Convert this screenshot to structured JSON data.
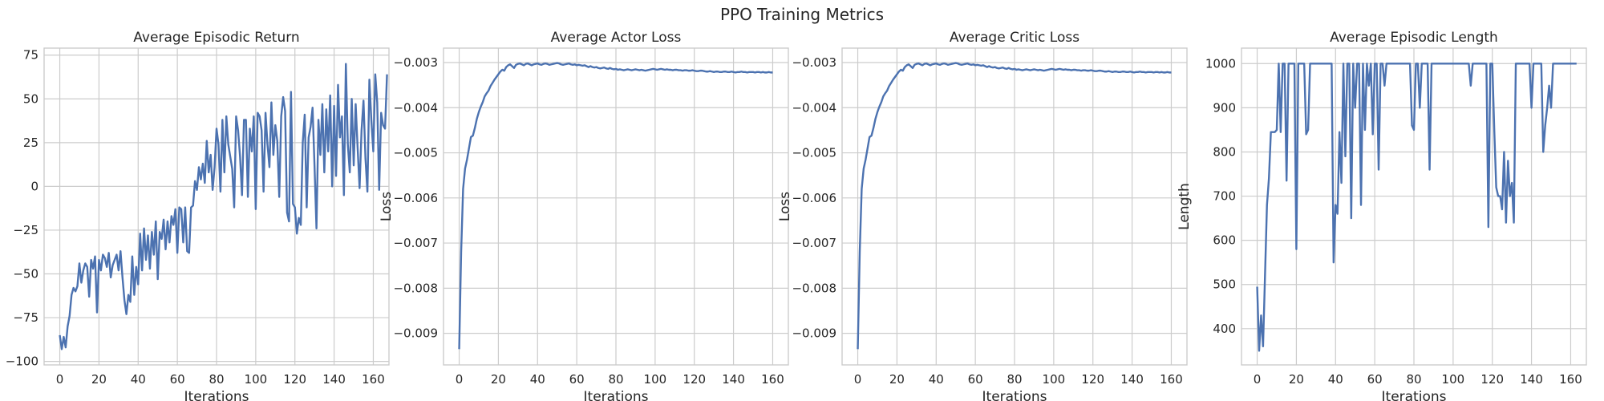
{
  "figure": {
    "title": "PPO Training Metrics"
  },
  "style": {
    "line_color": "#4c72b0",
    "grid_color": "#cccccc"
  },
  "chart_data": [
    {
      "type": "line",
      "title": "Average Episodic Return",
      "xlabel": "Iterations",
      "ylabel": "",
      "xlim": [
        -8,
        168
      ],
      "ylim": [
        -102,
        79
      ],
      "xticks": [
        0,
        20,
        40,
        60,
        80,
        100,
        120,
        140,
        160
      ],
      "yticks": [
        -100,
        -75,
        -50,
        -25,
        0,
        25,
        50,
        75
      ],
      "ytick_labels": [
        "−100",
        "−75",
        "−50",
        "−25",
        "0",
        "25",
        "50",
        "75"
      ],
      "grid": true,
      "series": [
        {
          "values": [
            -85,
            -93,
            -86,
            -92,
            -80,
            -74,
            -62,
            -58,
            -60,
            -57,
            -44,
            -55,
            -48,
            -44,
            -46,
            -63,
            -42,
            -47,
            -40,
            -72,
            -42,
            -48,
            -39,
            -41,
            -46,
            -38,
            -52,
            -45,
            -42,
            -39,
            -48,
            -37,
            -52,
            -65,
            -73,
            -62,
            -66,
            -40,
            -62,
            -46,
            -56,
            -27,
            -48,
            -24,
            -42,
            -28,
            -47,
            -26,
            -39,
            -20,
            -53,
            -26,
            -30,
            -19,
            -36,
            -20,
            -32,
            -17,
            -22,
            -13,
            -38,
            -12,
            -13,
            -32,
            -12,
            -37,
            -38,
            -12,
            -11,
            3,
            -2,
            11,
            4,
            13,
            2,
            26,
            8,
            18,
            -2,
            11,
            33,
            24,
            -3,
            38,
            8,
            40,
            24,
            17,
            10,
            -12,
            40,
            32,
            17,
            -5,
            38,
            38,
            -6,
            33,
            20,
            40,
            -13,
            42,
            40,
            32,
            -3,
            42,
            24,
            11,
            48,
            18,
            35,
            26,
            -6,
            40,
            51,
            43,
            -15,
            -20,
            54,
            -10,
            -12,
            -27,
            -18,
            -22,
            25,
            41,
            -12,
            28,
            34,
            45,
            12,
            -24,
            38,
            18,
            47,
            8,
            44,
            20,
            52,
            0,
            46,
            6,
            58,
            28,
            40,
            -5,
            70,
            24,
            8,
            50,
            12,
            47,
            22,
            -1,
            32,
            49,
            16,
            -3,
            61,
            38,
            20,
            64,
            48,
            -2,
            42,
            35,
            33,
            64
          ]
        }
      ]
    },
    {
      "type": "line",
      "title": "Average Actor Loss",
      "xlabel": "Iterations",
      "ylabel": "Loss",
      "xlim": [
        -8,
        168
      ],
      "ylim": [
        -0.0097,
        -0.00268
      ],
      "xticks": [
        0,
        20,
        40,
        60,
        80,
        100,
        120,
        140,
        160
      ],
      "yticks": [
        -0.009,
        -0.008,
        -0.007,
        -0.006,
        -0.005,
        -0.004,
        -0.003
      ],
      "ytick_labels": [
        "−0.009",
        "−0.008",
        "−0.007",
        "−0.006",
        "−0.005",
        "−0.004",
        "−0.003"
      ],
      "grid": true,
      "series": [
        {
          "values": [
            -0.00935,
            -0.0072,
            -0.0058,
            -0.00535,
            -0.00515,
            -0.0049,
            -0.00465,
            -0.00462,
            -0.00445,
            -0.00425,
            -0.0041,
            -0.00398,
            -0.00388,
            -0.00375,
            -0.00368,
            -0.00362,
            -0.00352,
            -0.00345,
            -0.00338,
            -0.00332,
            -0.00326,
            -0.0032,
            -0.00316,
            -0.00318,
            -0.0031,
            -0.00306,
            -0.00304,
            -0.00308,
            -0.00312,
            -0.00305,
            -0.00303,
            -0.00302,
            -0.00304,
            -0.00306,
            -0.00303,
            -0.00302,
            -0.00304,
            -0.00306,
            -0.00304,
            -0.00303,
            -0.00302,
            -0.00304,
            -0.00305,
            -0.00303,
            -0.00302,
            -0.00303,
            -0.00305,
            -0.00304,
            -0.00303,
            -0.00302,
            -0.00301,
            -0.00302,
            -0.00304,
            -0.00305,
            -0.00304,
            -0.00303,
            -0.00302,
            -0.00304,
            -0.00305,
            -0.00304,
            -0.00306,
            -0.00305,
            -0.00306,
            -0.00307,
            -0.00306,
            -0.00308,
            -0.0031,
            -0.00308,
            -0.0031,
            -0.00311,
            -0.0031,
            -0.00312,
            -0.00313,
            -0.00312,
            -0.00311,
            -0.00313,
            -0.00314,
            -0.00312,
            -0.00314,
            -0.00315,
            -0.00314,
            -0.00316,
            -0.00315,
            -0.00316,
            -0.00317,
            -0.00316,
            -0.00315,
            -0.00316,
            -0.00317,
            -0.00316,
            -0.00315,
            -0.00316,
            -0.00317,
            -0.00316,
            -0.00317,
            -0.00318,
            -0.00317,
            -0.00316,
            -0.00315,
            -0.00314,
            -0.00315,
            -0.00316,
            -0.00315,
            -0.00314,
            -0.00315,
            -0.00316,
            -0.00315,
            -0.00316,
            -0.00316,
            -0.00317,
            -0.00316,
            -0.00316,
            -0.00317,
            -0.00317,
            -0.00318,
            -0.00317,
            -0.00317,
            -0.00318,
            -0.00318,
            -0.00317,
            -0.00318,
            -0.00319,
            -0.00319,
            -0.00318,
            -0.00318,
            -0.00319,
            -0.0032,
            -0.0032,
            -0.00319,
            -0.0032,
            -0.00321,
            -0.0032,
            -0.0032,
            -0.00321,
            -0.00321,
            -0.0032,
            -0.0032,
            -0.00321,
            -0.00321,
            -0.0032,
            -0.00321,
            -0.00322,
            -0.00321,
            -0.00321,
            -0.0032,
            -0.00321,
            -0.00321,
            -0.00322,
            -0.00321,
            -0.00321,
            -0.00321,
            -0.00322,
            -0.00321,
            -0.00321,
            -0.00322,
            -0.00321,
            -0.00322,
            -0.00322,
            -0.00321,
            -0.00322,
            -0.00322
          ]
        }
      ]
    },
    {
      "type": "line",
      "title": "Average Critic Loss",
      "xlabel": "Iterations",
      "ylabel": "Loss",
      "xlim": [
        -8,
        168
      ],
      "ylim": [
        -0.0097,
        -0.00268
      ],
      "xticks": [
        0,
        20,
        40,
        60,
        80,
        100,
        120,
        140,
        160
      ],
      "yticks": [
        -0.009,
        -0.008,
        -0.007,
        -0.006,
        -0.005,
        -0.004,
        -0.003
      ],
      "ytick_labels": [
        "−0.009",
        "−0.008",
        "−0.007",
        "−0.006",
        "−0.005",
        "−0.004",
        "−0.003"
      ],
      "grid": true,
      "series": [
        {
          "values": [
            -0.00935,
            -0.0072,
            -0.0058,
            -0.00535,
            -0.00515,
            -0.0049,
            -0.00465,
            -0.00462,
            -0.00445,
            -0.00425,
            -0.0041,
            -0.00398,
            -0.00388,
            -0.00375,
            -0.00368,
            -0.00362,
            -0.00352,
            -0.00345,
            -0.00338,
            -0.00332,
            -0.00326,
            -0.0032,
            -0.00316,
            -0.00318,
            -0.0031,
            -0.00306,
            -0.00304,
            -0.00308,
            -0.00312,
            -0.00305,
            -0.00303,
            -0.00302,
            -0.00304,
            -0.00306,
            -0.00303,
            -0.00302,
            -0.00304,
            -0.00306,
            -0.00304,
            -0.00303,
            -0.00302,
            -0.00304,
            -0.00305,
            -0.00303,
            -0.00302,
            -0.00303,
            -0.00305,
            -0.00304,
            -0.00303,
            -0.00302,
            -0.00301,
            -0.00302,
            -0.00304,
            -0.00305,
            -0.00304,
            -0.00303,
            -0.00302,
            -0.00304,
            -0.00305,
            -0.00304,
            -0.00306,
            -0.00305,
            -0.00306,
            -0.00307,
            -0.00306,
            -0.00308,
            -0.0031,
            -0.00308,
            -0.0031,
            -0.00311,
            -0.0031,
            -0.00312,
            -0.00313,
            -0.00312,
            -0.00311,
            -0.00313,
            -0.00314,
            -0.00312,
            -0.00314,
            -0.00315,
            -0.00314,
            -0.00316,
            -0.00315,
            -0.00316,
            -0.00317,
            -0.00316,
            -0.00315,
            -0.00316,
            -0.00317,
            -0.00316,
            -0.00315,
            -0.00316,
            -0.00317,
            -0.00316,
            -0.00317,
            -0.00318,
            -0.00317,
            -0.00316,
            -0.00315,
            -0.00314,
            -0.00315,
            -0.00316,
            -0.00315,
            -0.00314,
            -0.00315,
            -0.00316,
            -0.00315,
            -0.00316,
            -0.00316,
            -0.00317,
            -0.00316,
            -0.00316,
            -0.00317,
            -0.00317,
            -0.00318,
            -0.00317,
            -0.00317,
            -0.00318,
            -0.00318,
            -0.00317,
            -0.00318,
            -0.00319,
            -0.00319,
            -0.00318,
            -0.00318,
            -0.00319,
            -0.0032,
            -0.0032,
            -0.00319,
            -0.0032,
            -0.00321,
            -0.0032,
            -0.0032,
            -0.00321,
            -0.00321,
            -0.0032,
            -0.0032,
            -0.00321,
            -0.00321,
            -0.0032,
            -0.00321,
            -0.00322,
            -0.00321,
            -0.00321,
            -0.0032,
            -0.00321,
            -0.00321,
            -0.00322,
            -0.00321,
            -0.00321,
            -0.00321,
            -0.00322,
            -0.00321,
            -0.00321,
            -0.00322,
            -0.00321,
            -0.00322,
            -0.00322,
            -0.00321,
            -0.00322,
            -0.00322
          ]
        }
      ]
    },
    {
      "type": "line",
      "title": "Average Episodic Length",
      "xlabel": "Iterations",
      "ylabel": "Length",
      "xlim": [
        -8,
        168
      ],
      "ylim": [
        318,
        1035
      ],
      "xticks": [
        0,
        20,
        40,
        60,
        80,
        100,
        120,
        140,
        160
      ],
      "yticks": [
        400,
        500,
        600,
        700,
        800,
        900,
        1000
      ],
      "ytick_labels": [
        "400",
        "500",
        "600",
        "700",
        "800",
        "900",
        "1000"
      ],
      "grid": true,
      "series": [
        {
          "values": [
            495,
            350,
            430,
            360,
            520,
            680,
            740,
            845,
            845,
            845,
            850,
            1000,
            845,
            1000,
            1000,
            735,
            1000,
            1000,
            1000,
            1000,
            580,
            1000,
            1000,
            1000,
            1000,
            840,
            850,
            1000,
            1000,
            1000,
            1000,
            1000,
            1000,
            1000,
            1000,
            1000,
            1000,
            1000,
            1000,
            550,
            680,
            660,
            845,
            730,
            1000,
            790,
            1000,
            1000,
            650,
            1000,
            900,
            1000,
            1000,
            680,
            1000,
            850,
            1000,
            950,
            1000,
            840,
            1000,
            1000,
            760,
            1000,
            1000,
            950,
            1000,
            1000,
            1000,
            1000,
            1000,
            1000,
            1000,
            1000,
            1000,
            1000,
            1000,
            1000,
            1000,
            860,
            850,
            1000,
            1000,
            900,
            1000,
            1000,
            1000,
            1000,
            760,
            1000,
            1000,
            1000,
            1000,
            1000,
            1000,
            1000,
            1000,
            1000,
            1000,
            1000,
            1000,
            1000,
            1000,
            1000,
            1000,
            1000,
            1000,
            1000,
            1000,
            950,
            1000,
            1000,
            1000,
            1000,
            1000,
            1000,
            1000,
            1000,
            630,
            1000,
            1000,
            850,
            720,
            700,
            700,
            670,
            800,
            640,
            780,
            700,
            730,
            640,
            1000,
            1000,
            1000,
            1000,
            1000,
            1000,
            1000,
            1000,
            900,
            1000,
            1000,
            1000,
            1000,
            1000,
            800,
            860,
            900,
            950,
            900,
            1000,
            1000,
            1000,
            1000,
            1000,
            1000,
            1000,
            1000,
            1000,
            1000,
            1000,
            1000,
            1000
          ]
        }
      ]
    }
  ]
}
